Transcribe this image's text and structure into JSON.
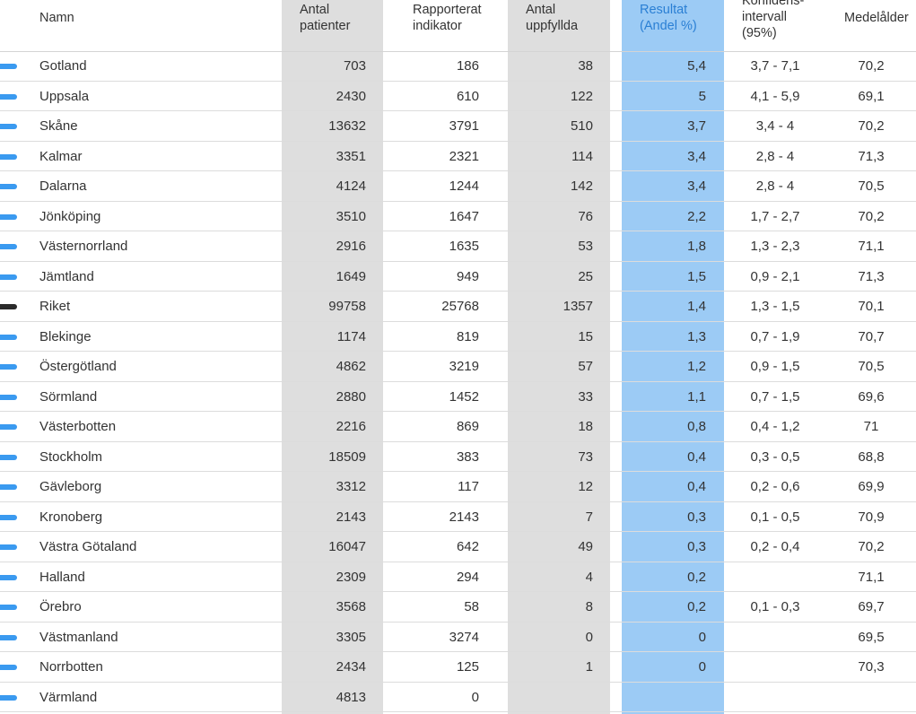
{
  "colors": {
    "gray_column": "#dedede",
    "result_column": "#9ccbf5",
    "result_header_text": "#2a7fd4",
    "region_marker": "#3a9af0",
    "national_marker": "#2b2b2b"
  },
  "header": {
    "name": "Namn",
    "patients": [
      "Antal",
      "patienter"
    ],
    "reported": [
      "Rapporterat",
      "indikator"
    ],
    "fulfilled": [
      "Antal",
      "uppfyllda"
    ],
    "result": [
      "Resultat",
      "(Andel %)"
    ],
    "ci": [
      "Konfidens-",
      "intervall",
      "(95%)"
    ],
    "age": "Medelålder"
  },
  "rows": [
    {
      "name": "Gotland",
      "patients": "703",
      "reported": "186",
      "fulfilled": "38",
      "result": "5,4",
      "ci": "3,7 - 7,1",
      "age": "70,2",
      "marker": "region"
    },
    {
      "name": "Uppsala",
      "patients": "2430",
      "reported": "610",
      "fulfilled": "122",
      "result": "5",
      "ci": "4,1 - 5,9",
      "age": "69,1",
      "marker": "region"
    },
    {
      "name": "Skåne",
      "patients": "13632",
      "reported": "3791",
      "fulfilled": "510",
      "result": "3,7",
      "ci": "3,4 - 4",
      "age": "70,2",
      "marker": "region"
    },
    {
      "name": "Kalmar",
      "patients": "3351",
      "reported": "2321",
      "fulfilled": "114",
      "result": "3,4",
      "ci": "2,8 - 4",
      "age": "71,3",
      "marker": "region"
    },
    {
      "name": "Dalarna",
      "patients": "4124",
      "reported": "1244",
      "fulfilled": "142",
      "result": "3,4",
      "ci": "2,8 - 4",
      "age": "70,5",
      "marker": "region"
    },
    {
      "name": "Jönköping",
      "patients": "3510",
      "reported": "1647",
      "fulfilled": "76",
      "result": "2,2",
      "ci": "1,7 - 2,7",
      "age": "70,2",
      "marker": "region"
    },
    {
      "name": "Västernorrland",
      "patients": "2916",
      "reported": "1635",
      "fulfilled": "53",
      "result": "1,8",
      "ci": "1,3 - 2,3",
      "age": "71,1",
      "marker": "region"
    },
    {
      "name": "Jämtland",
      "patients": "1649",
      "reported": "949",
      "fulfilled": "25",
      "result": "1,5",
      "ci": "0,9 - 2,1",
      "age": "71,3",
      "marker": "region"
    },
    {
      "name": "Riket",
      "patients": "99758",
      "reported": "25768",
      "fulfilled": "1357",
      "result": "1,4",
      "ci": "1,3 - 1,5",
      "age": "70,1",
      "marker": "national"
    },
    {
      "name": "Blekinge",
      "patients": "1174",
      "reported": "819",
      "fulfilled": "15",
      "result": "1,3",
      "ci": "0,7 - 1,9",
      "age": "70,7",
      "marker": "region"
    },
    {
      "name": "Östergötland",
      "patients": "4862",
      "reported": "3219",
      "fulfilled": "57",
      "result": "1,2",
      "ci": "0,9 - 1,5",
      "age": "70,5",
      "marker": "region"
    },
    {
      "name": "Sörmland",
      "patients": "2880",
      "reported": "1452",
      "fulfilled": "33",
      "result": "1,1",
      "ci": "0,7 - 1,5",
      "age": "69,6",
      "marker": "region"
    },
    {
      "name": "Västerbotten",
      "patients": "2216",
      "reported": "869",
      "fulfilled": "18",
      "result": "0,8",
      "ci": "0,4 - 1,2",
      "age": "71",
      "marker": "region"
    },
    {
      "name": "Stockholm",
      "patients": "18509",
      "reported": "383",
      "fulfilled": "73",
      "result": "0,4",
      "ci": "0,3 - 0,5",
      "age": "68,8",
      "marker": "region"
    },
    {
      "name": "Gävleborg",
      "patients": "3312",
      "reported": "117",
      "fulfilled": "12",
      "result": "0,4",
      "ci": "0,2 - 0,6",
      "age": "69,9",
      "marker": "region"
    },
    {
      "name": "Kronoberg",
      "patients": "2143",
      "reported": "2143",
      "fulfilled": "7",
      "result": "0,3",
      "ci": "0,1 - 0,5",
      "age": "70,9",
      "marker": "region"
    },
    {
      "name": "Västra Götaland",
      "patients": "16047",
      "reported": "642",
      "fulfilled": "49",
      "result": "0,3",
      "ci": "0,2 - 0,4",
      "age": "70,2",
      "marker": "region"
    },
    {
      "name": "Halland",
      "patients": "2309",
      "reported": "294",
      "fulfilled": "4",
      "result": "0,2",
      "ci": "",
      "age": "71,1",
      "marker": "region"
    },
    {
      "name": "Örebro",
      "patients": "3568",
      "reported": "58",
      "fulfilled": "8",
      "result": "0,2",
      "ci": "0,1 - 0,3",
      "age": "69,7",
      "marker": "region"
    },
    {
      "name": "Västmanland",
      "patients": "3305",
      "reported": "3274",
      "fulfilled": "0",
      "result": "0",
      "ci": "",
      "age": "69,5",
      "marker": "region"
    },
    {
      "name": "Norrbotten",
      "patients": "2434",
      "reported": "125",
      "fulfilled": "1",
      "result": "0",
      "ci": "",
      "age": "70,3",
      "marker": "region"
    },
    {
      "name": "Värmland",
      "patients": "4813",
      "reported": "0",
      "fulfilled": "",
      "result": "",
      "ci": "",
      "age": "",
      "marker": "region"
    }
  ]
}
